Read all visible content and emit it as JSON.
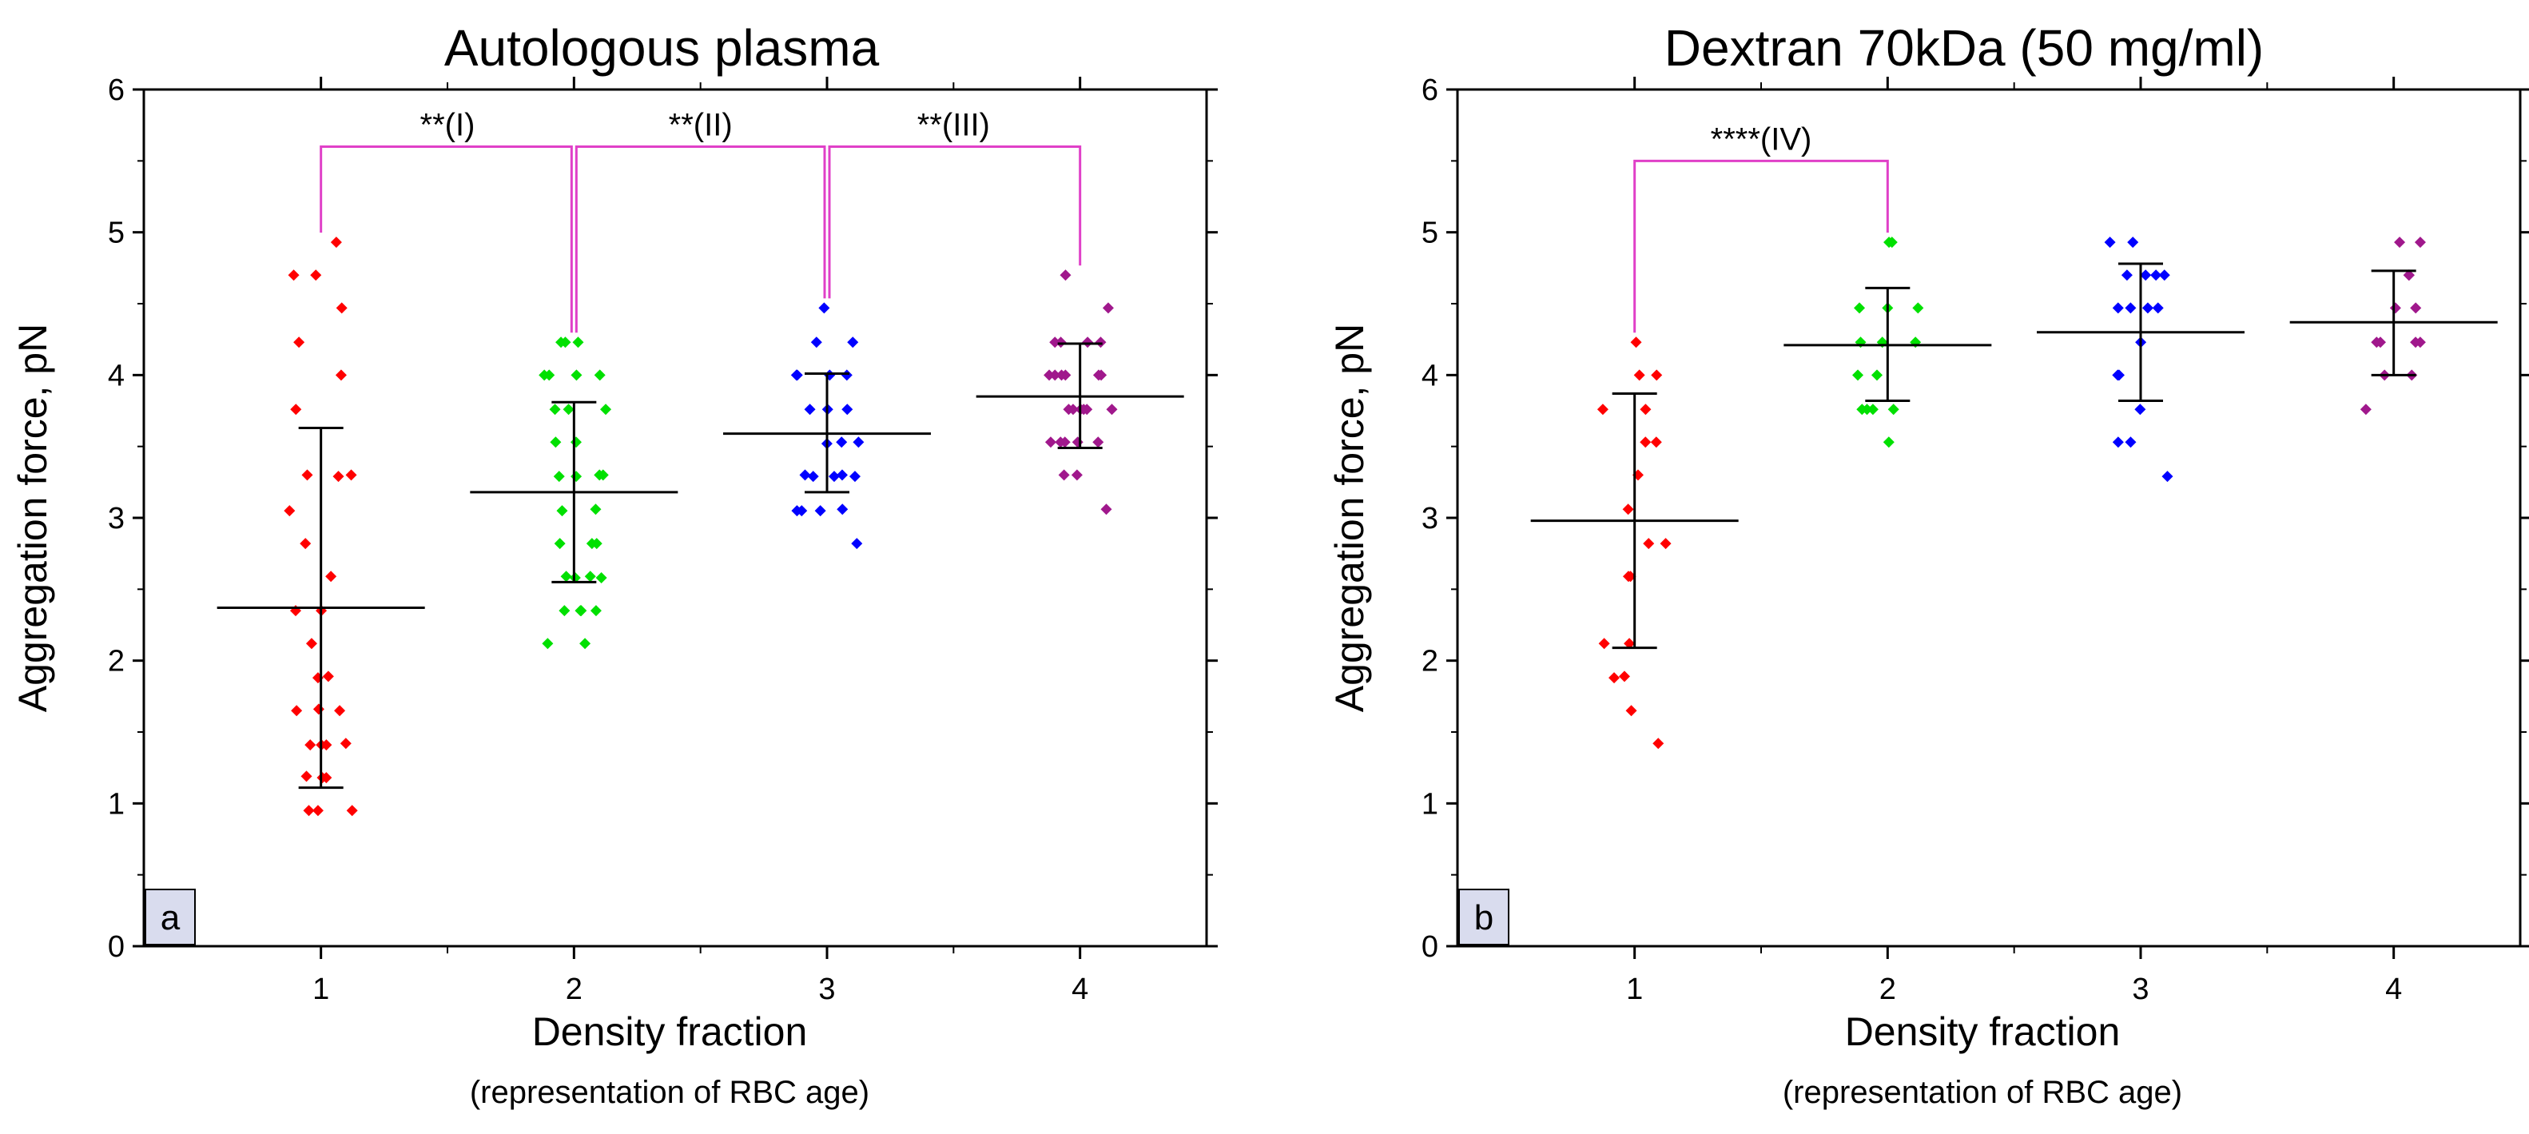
{
  "chart_data": [
    {
      "type": "scatter",
      "panel_tag": "a",
      "title": "Autologous plasma",
      "xlabel": "Density fraction",
      "xlabel_sub": "(representation of RBC age)",
      "ylabel": "Aggregation force, pN",
      "xlim": [
        0.3,
        4.5
      ],
      "ylim": [
        0,
        6
      ],
      "xticks": [
        "1",
        "2",
        "3",
        "4"
      ],
      "yticks": [
        "0",
        "1",
        "2",
        "3",
        "4",
        "5",
        "6"
      ],
      "grid": false,
      "series": [
        {
          "name": "1",
          "color": "#ff0000",
          "points": [
            4.93,
            4.7,
            4.7,
            4.47,
            4.23,
            4.0,
            3.76,
            3.3,
            3.3,
            3.29,
            3.05,
            2.82,
            2.59,
            2.35,
            2.35,
            2.12,
            1.89,
            1.88,
            1.66,
            1.65,
            1.65,
            1.42,
            1.41,
            1.41,
            1.41,
            1.19,
            1.18,
            1.18,
            0.95,
            0.95,
            0.95
          ],
          "mean": 2.37,
          "sd_low": 1.11,
          "sd_high": 3.63
        },
        {
          "name": "2",
          "color": "#00e000",
          "points": [
            4.23,
            4.23,
            4.23,
            4.0,
            4.0,
            4.0,
            4.0,
            3.76,
            3.76,
            3.76,
            3.53,
            3.53,
            3.3,
            3.3,
            3.29,
            3.29,
            3.06,
            3.05,
            2.82,
            2.82,
            2.82,
            2.59,
            2.59,
            2.58,
            2.58,
            2.35,
            2.35,
            2.35,
            2.35,
            2.12,
            2.12
          ],
          "mean": 3.18,
          "sd_low": 2.55,
          "sd_high": 3.81
        },
        {
          "name": "3",
          "color": "#0000ff",
          "points": [
            4.47,
            4.23,
            4.23,
            4.0,
            4.0,
            4.0,
            4.0,
            3.76,
            3.76,
            3.76,
            3.53,
            3.53,
            3.52,
            3.3,
            3.3,
            3.29,
            3.29,
            3.29,
            3.06,
            3.05,
            3.05,
            3.05,
            2.82
          ],
          "mean": 3.59,
          "sd_low": 3.18,
          "sd_high": 4.01
        },
        {
          "name": "4",
          "color": "#a0188c",
          "points": [
            4.7,
            4.47,
            4.23,
            4.23,
            4.23,
            4.23,
            4.0,
            4.0,
            4.0,
            4.0,
            4.0,
            4.0,
            3.76,
            3.76,
            3.76,
            3.76,
            3.76,
            3.76,
            3.53,
            3.53,
            3.53,
            3.53,
            3.53,
            3.3,
            3.3,
            3.06
          ],
          "mean": 3.85,
          "sd_low": 3.49,
          "sd_high": 4.22
        }
      ],
      "significance": [
        {
          "from": "1",
          "to": "2",
          "y": 5.6,
          "label": "**(I)"
        },
        {
          "from": "2",
          "to": "3",
          "y": 5.6,
          "label": "**(II)"
        },
        {
          "from": "3",
          "to": "4",
          "y": 5.6,
          "label": "**(III)"
        }
      ]
    },
    {
      "type": "scatter",
      "panel_tag": "b",
      "title": "Dextran 70kDa (50 mg/ml)",
      "xlabel": "Density fraction",
      "xlabel_sub": "(representation of RBC age)",
      "ylabel": "Aggregation force, pN",
      "xlim": [
        0.3,
        4.5
      ],
      "ylim": [
        0,
        6
      ],
      "xticks": [
        "1",
        "2",
        "3",
        "4"
      ],
      "yticks": [
        "0",
        "1",
        "2",
        "3",
        "4",
        "5",
        "6"
      ],
      "grid": false,
      "series": [
        {
          "name": "1",
          "color": "#ff0000",
          "points": [
            4.23,
            4.0,
            4.0,
            3.76,
            3.76,
            3.53,
            3.53,
            3.3,
            3.06,
            2.82,
            2.82,
            2.59,
            2.59,
            2.12,
            2.12,
            1.89,
            1.88,
            1.65,
            1.42
          ],
          "mean": 2.98,
          "sd_low": 2.09,
          "sd_high": 3.87
        },
        {
          "name": "2",
          "color": "#00e000",
          "points": [
            4.93,
            4.93,
            4.47,
            4.47,
            4.47,
            4.23,
            4.23,
            4.23,
            4.0,
            4.0,
            3.76,
            3.76,
            3.76,
            3.76,
            3.53
          ],
          "mean": 4.21,
          "sd_low": 3.82,
          "sd_high": 4.61
        },
        {
          "name": "3",
          "color": "#0000ff",
          "points": [
            4.93,
            4.93,
            4.7,
            4.7,
            4.7,
            4.7,
            4.47,
            4.47,
            4.47,
            4.47,
            4.23,
            4.0,
            4.0,
            3.76,
            3.53,
            3.53,
            3.29
          ],
          "mean": 4.3,
          "sd_low": 3.82,
          "sd_high": 4.78
        },
        {
          "name": "4",
          "color": "#a0188c",
          "points": [
            4.93,
            4.93,
            4.7,
            4.7,
            4.47,
            4.47,
            4.23,
            4.23,
            4.23,
            4.23,
            4.0,
            4.0,
            3.76
          ],
          "mean": 4.37,
          "sd_low": 4.0,
          "sd_high": 4.73
        }
      ],
      "significance": [
        {
          "from": "1",
          "to": "2",
          "y": 5.5,
          "label": "****(IV)"
        }
      ]
    }
  ]
}
